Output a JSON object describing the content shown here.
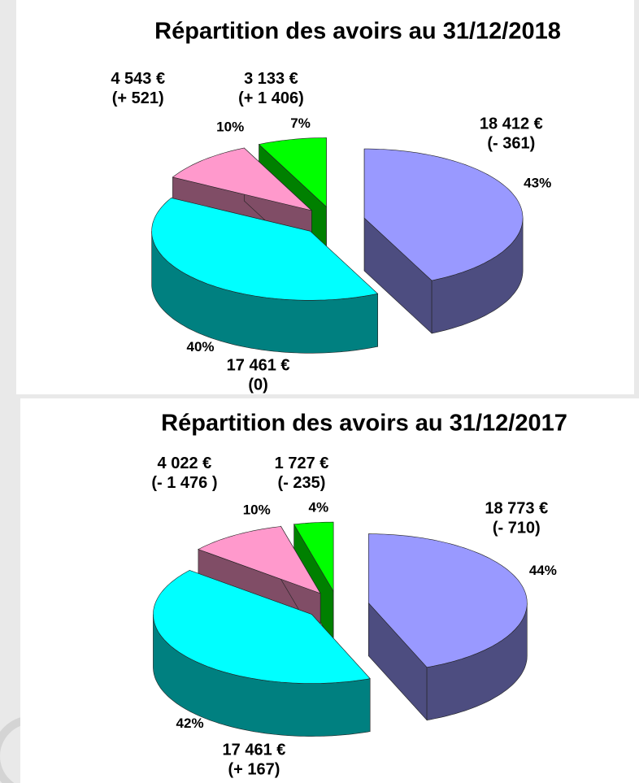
{
  "chart_data": [
    {
      "type": "pie",
      "title": "Répartition des avoirs au 31/12/2018",
      "values": [
        43,
        40,
        10,
        7
      ],
      "value_labels": [
        "43%",
        "40%",
        "10%",
        "7%"
      ],
      "colors": [
        "#9999ff",
        "#00ffff",
        "#ff99cc",
        "#00ff00"
      ],
      "amount_labels": [
        "18 412 €",
        "17 461  €",
        "4 543  €",
        "3 133 €"
      ],
      "changes": [
        -361,
        0,
        521,
        1406
      ],
      "change_labels": [
        "(- 361)",
        "(0)",
        "(+ 521)",
        "(+ 1 406)"
      ]
    },
    {
      "type": "pie",
      "title": "Répartition des avoirs au 31/12/2017",
      "values": [
        44,
        42,
        10,
        4
      ],
      "value_labels": [
        "44%",
        "42%",
        "10%",
        "4%"
      ],
      "colors": [
        "#9999ff",
        "#00ffff",
        "#ff99cc",
        "#00ff00"
      ],
      "amount_labels": [
        "18 773 €",
        "17 461  €",
        "4 022  €",
        "1 727 €"
      ],
      "changes": [
        -710,
        167,
        -1476,
        -235
      ],
      "change_labels": [
        "(- 710)",
        "(+ 167)",
        "(- 1 476 )",
        "(- 235)"
      ]
    }
  ]
}
